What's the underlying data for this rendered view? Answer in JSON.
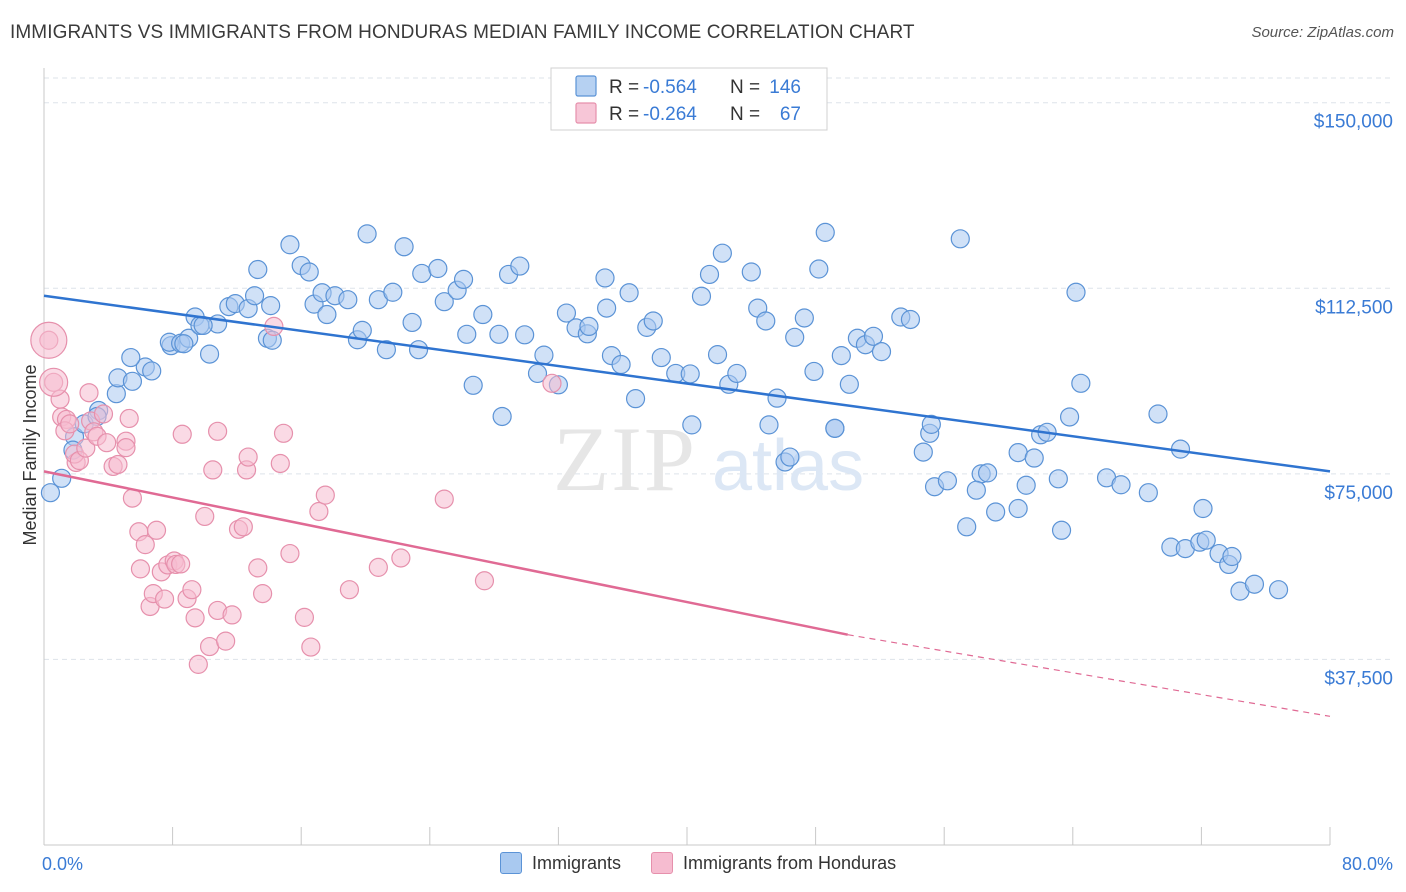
{
  "title": "IMMIGRANTS VS IMMIGRANTS FROM HONDURAS MEDIAN FAMILY INCOME CORRELATION CHART",
  "source": "Source: ZipAtlas.com",
  "watermark": {
    "zip": "ZIP",
    "atlas": "atlas"
  },
  "legend_box": [
    {
      "r_label": "R =",
      "r_value": "-0.564",
      "n_label": "N =",
      "n_value": "146"
    },
    {
      "r_label": "R =",
      "r_value": "-0.264",
      "n_label": "N =",
      "n_value": "67"
    }
  ],
  "colors": {
    "blue_fill": "#a9c9f0",
    "blue_stroke": "#5b93d6",
    "blue_line": "#2f74d0",
    "pink_fill": "#f6bcd0",
    "pink_stroke": "#e690ac",
    "pink_line": "#e06a94",
    "value_text": "#3a7bd5",
    "grid": "#dde3ea"
  },
  "chart_data": {
    "type": "scatter",
    "xlabel": "",
    "ylabel": "Median Family Income",
    "xlim": [
      0,
      80
    ],
    "ylim": [
      0,
      155000
    ],
    "x_tick_labels": [
      "0.0%",
      "80.0%"
    ],
    "y_ticks": [
      37500,
      75000,
      112500,
      150000
    ],
    "y_tick_labels": [
      "$37,500",
      "$75,000",
      "$112,500",
      "$150,000"
    ],
    "grid": true,
    "legend_position": "top-center",
    "series": [
      {
        "name": "Immigrants",
        "color": "#5b93d6",
        "trend": {
          "x": [
            0,
            80
          ],
          "y": [
            111000,
            75500
          ]
        },
        "points": [
          [
            0.4,
            71200
          ],
          [
            1.1,
            74100
          ],
          [
            1.9,
            82500
          ],
          [
            1.8,
            79800
          ],
          [
            2.5,
            85100
          ],
          [
            3.4,
            87800
          ],
          [
            3.3,
            86600
          ],
          [
            4.5,
            91200
          ],
          [
            4.6,
            94400
          ],
          [
            5.5,
            93700
          ],
          [
            6.3,
            96600
          ],
          [
            5.4,
            98500
          ],
          [
            6.7,
            95800
          ],
          [
            7.9,
            100900
          ],
          [
            7.8,
            101600
          ],
          [
            8.5,
            101400
          ],
          [
            9.0,
            102400
          ],
          [
            9.4,
            106700
          ],
          [
            9.7,
            105000
          ],
          [
            10.3,
            99200
          ],
          [
            10.8,
            105300
          ],
          [
            11.5,
            108800
          ],
          [
            11.9,
            109400
          ],
          [
            12.7,
            108400
          ],
          [
            13.1,
            111000
          ],
          [
            13.3,
            116300
          ],
          [
            14.1,
            109000
          ],
          [
            13.9,
            102400
          ],
          [
            14.2,
            102000
          ],
          [
            15.3,
            121300
          ],
          [
            16.0,
            117100
          ],
          [
            16.5,
            115800
          ],
          [
            16.8,
            109300
          ],
          [
            17.3,
            111600
          ],
          [
            17.6,
            107200
          ],
          [
            18.1,
            111000
          ],
          [
            18.9,
            110200
          ],
          [
            19.5,
            102100
          ],
          [
            19.8,
            104000
          ],
          [
            20.1,
            123500
          ],
          [
            20.8,
            110200
          ],
          [
            21.7,
            111700
          ],
          [
            22.4,
            120900
          ],
          [
            22.9,
            105600
          ],
          [
            23.5,
            115500
          ],
          [
            23.3,
            100100
          ],
          [
            24.5,
            116500
          ],
          [
            24.9,
            109800
          ],
          [
            25.7,
            112100
          ],
          [
            26.3,
            103200
          ],
          [
            26.1,
            114300
          ],
          [
            26.7,
            92900
          ],
          [
            27.3,
            107200
          ],
          [
            28.3,
            103200
          ],
          [
            28.5,
            86600
          ],
          [
            28.9,
            115300
          ],
          [
            29.6,
            117000
          ],
          [
            29.9,
            103100
          ],
          [
            30.7,
            95300
          ],
          [
            31.1,
            99000
          ],
          [
            32.0,
            93000
          ],
          [
            32.5,
            107500
          ],
          [
            33.1,
            104500
          ],
          [
            33.8,
            103300
          ],
          [
            33.9,
            104800
          ],
          [
            34.9,
            114600
          ],
          [
            35.0,
            108500
          ],
          [
            35.3,
            98900
          ],
          [
            35.9,
            97100
          ],
          [
            36.4,
            111600
          ],
          [
            36.8,
            90200
          ],
          [
            37.5,
            104600
          ],
          [
            37.9,
            105900
          ],
          [
            38.4,
            98500
          ],
          [
            39.3,
            95300
          ],
          [
            40.2,
            95200
          ],
          [
            40.3,
            84900
          ],
          [
            40.9,
            110900
          ],
          [
            41.4,
            115300
          ],
          [
            41.9,
            99100
          ],
          [
            42.2,
            119600
          ],
          [
            42.6,
            93100
          ],
          [
            43.1,
            95300
          ],
          [
            44.0,
            115800
          ],
          [
            44.4,
            108500
          ],
          [
            44.9,
            105900
          ],
          [
            45.1,
            84900
          ],
          [
            45.6,
            90300
          ],
          [
            46.1,
            77400
          ],
          [
            46.4,
            78400
          ],
          [
            46.7,
            102600
          ],
          [
            47.3,
            106500
          ],
          [
            47.9,
            95700
          ],
          [
            48.2,
            116400
          ],
          [
            48.6,
            123800
          ],
          [
            49.2,
            84200
          ],
          [
            49.6,
            98900
          ],
          [
            50.1,
            93100
          ],
          [
            50.6,
            102400
          ],
          [
            51.1,
            101100
          ],
          [
            51.6,
            102800
          ],
          [
            52.1,
            99700
          ],
          [
            53.3,
            106700
          ],
          [
            53.9,
            106200
          ],
          [
            54.7,
            79400
          ],
          [
            55.1,
            83200
          ],
          [
            55.2,
            85000
          ],
          [
            55.4,
            72400
          ],
          [
            56.2,
            73600
          ],
          [
            57.0,
            122500
          ],
          [
            57.4,
            64300
          ],
          [
            58.3,
            75000
          ],
          [
            58.7,
            75200
          ],
          [
            59.2,
            67300
          ],
          [
            60.6,
            79300
          ],
          [
            60.6,
            68000
          ],
          [
            61.1,
            72700
          ],
          [
            61.6,
            78200
          ],
          [
            62.0,
            82900
          ],
          [
            62.4,
            83400
          ],
          [
            63.1,
            74000
          ],
          [
            63.3,
            63600
          ],
          [
            63.8,
            86500
          ],
          [
            64.2,
            111700
          ],
          [
            64.5,
            93300
          ],
          [
            66.1,
            74200
          ],
          [
            67.0,
            72800
          ],
          [
            68.7,
            71200
          ],
          [
            69.3,
            87100
          ],
          [
            70.1,
            60200
          ],
          [
            70.7,
            80000
          ],
          [
            71.0,
            59900
          ],
          [
            71.9,
            61200
          ],
          [
            72.1,
            68000
          ],
          [
            72.3,
            61600
          ],
          [
            73.1,
            58900
          ],
          [
            73.7,
            56700
          ],
          [
            73.9,
            58300
          ],
          [
            74.4,
            51300
          ],
          [
            75.3,
            52700
          ],
          [
            76.8,
            51600
          ],
          [
            49.2,
            84200
          ],
          [
            21.3,
            100100
          ],
          [
            9.9,
            105000
          ],
          [
            58.0,
            71700
          ],
          [
            8.7,
            101300
          ]
        ]
      },
      {
        "name": "Immigrants from Honduras",
        "color": "#e690ac",
        "trend": {
          "x": [
            0,
            50
          ],
          "y": [
            75500,
            42500
          ],
          "dashed_to": {
            "x": 80,
            "y": 26000
          }
        },
        "points": [
          [
            0.3,
            102000
          ],
          [
            0.6,
            93500
          ],
          [
            1.0,
            90100
          ],
          [
            1.1,
            86500
          ],
          [
            1.4,
            86000
          ],
          [
            1.3,
            83700
          ],
          [
            1.6,
            85100
          ],
          [
            2.0,
            77300
          ],
          [
            1.9,
            79000
          ],
          [
            2.2,
            77700
          ],
          [
            2.6,
            80200
          ],
          [
            2.8,
            91400
          ],
          [
            2.9,
            85700
          ],
          [
            3.1,
            83500
          ],
          [
            3.3,
            82600
          ],
          [
            3.7,
            87100
          ],
          [
            3.9,
            81300
          ],
          [
            4.3,
            76500
          ],
          [
            4.6,
            76900
          ],
          [
            5.1,
            81600
          ],
          [
            5.1,
            80300
          ],
          [
            5.3,
            86200
          ],
          [
            5.5,
            70100
          ],
          [
            5.9,
            63300
          ],
          [
            6.0,
            55800
          ],
          [
            6.3,
            60700
          ],
          [
            6.6,
            48200
          ],
          [
            6.8,
            50800
          ],
          [
            7.0,
            63600
          ],
          [
            7.3,
            55200
          ],
          [
            7.5,
            49700
          ],
          [
            7.7,
            56600
          ],
          [
            8.1,
            57400
          ],
          [
            8.2,
            56700
          ],
          [
            8.5,
            56800
          ],
          [
            8.6,
            83000
          ],
          [
            8.9,
            49800
          ],
          [
            9.2,
            51600
          ],
          [
            9.4,
            45900
          ],
          [
            9.6,
            36500
          ],
          [
            10.0,
            66400
          ],
          [
            10.3,
            40100
          ],
          [
            10.5,
            75800
          ],
          [
            10.8,
            47400
          ],
          [
            10.8,
            83600
          ],
          [
            11.3,
            41200
          ],
          [
            11.7,
            46500
          ],
          [
            12.1,
            63800
          ],
          [
            12.4,
            64300
          ],
          [
            12.6,
            75800
          ],
          [
            12.7,
            78400
          ],
          [
            13.3,
            56000
          ],
          [
            13.6,
            50800
          ],
          [
            14.3,
            104800
          ],
          [
            14.7,
            77100
          ],
          [
            14.9,
            83200
          ],
          [
            15.3,
            58900
          ],
          [
            16.2,
            46000
          ],
          [
            16.6,
            40000
          ],
          [
            17.1,
            67400
          ],
          [
            17.5,
            70700
          ],
          [
            19.0,
            51600
          ],
          [
            20.8,
            56100
          ],
          [
            22.2,
            58000
          ],
          [
            24.9,
            69900
          ],
          [
            27.4,
            53400
          ],
          [
            31.6,
            93300
          ]
        ]
      }
    ]
  },
  "bottom_legend": [
    {
      "label": "Immigrants"
    },
    {
      "label": "Immigrants from Honduras"
    }
  ]
}
